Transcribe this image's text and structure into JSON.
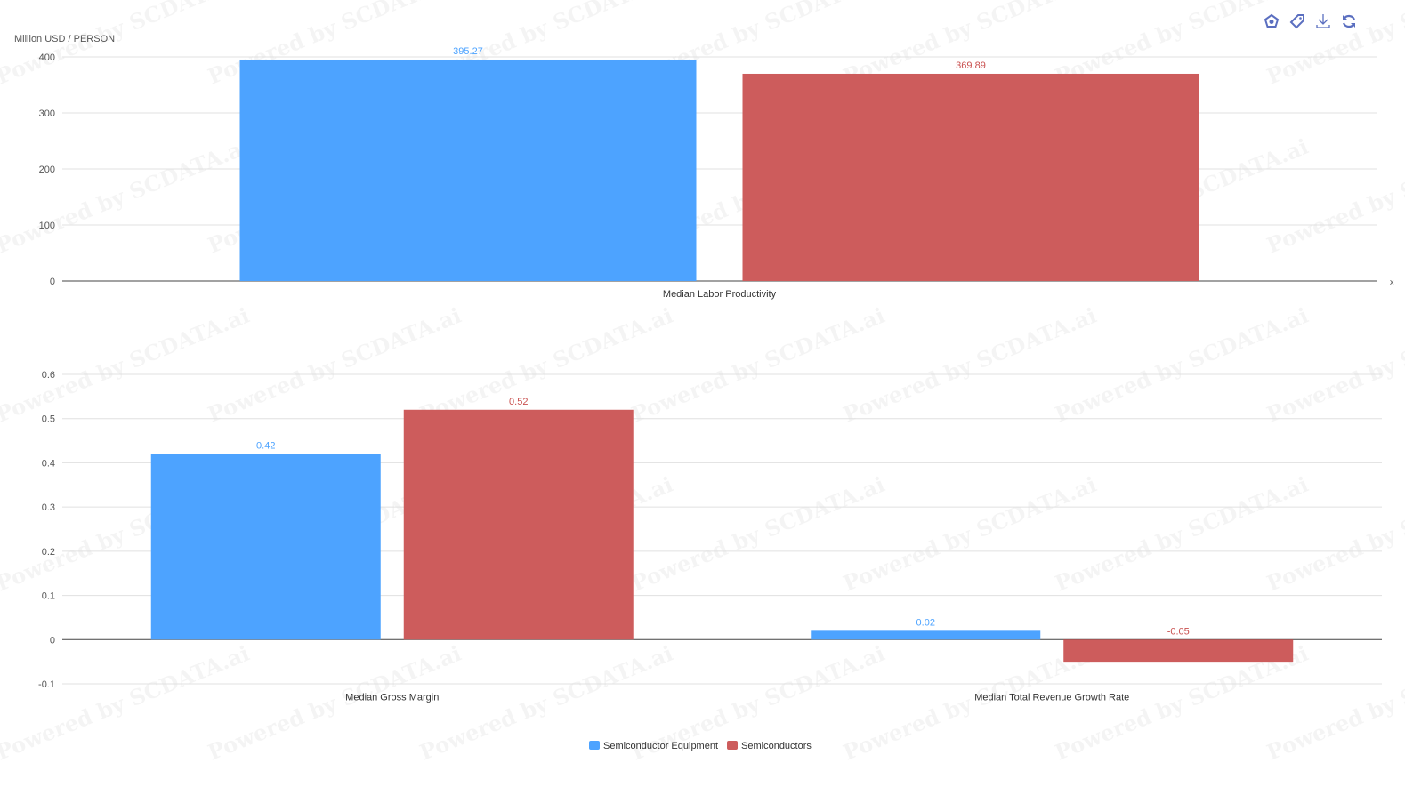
{
  "watermark": "Powered by SCDATA.ai",
  "toolbar": {
    "icons": [
      "radar-icon",
      "tag-icon",
      "download-icon",
      "refresh-icon"
    ]
  },
  "colors": {
    "series1": "#4da3ff",
    "series2": "#cd5c5c",
    "label1": "#4da3ff",
    "label2": "#c9504f"
  },
  "chart_data": [
    {
      "type": "bar",
      "title": "",
      "ylabel": "Million USD / PERSON",
      "xlabel": "x",
      "ylim": [
        0,
        400
      ],
      "yticks": [
        "0",
        "100",
        "200",
        "300",
        "400"
      ],
      "categories": [
        "Median Labor Productivity"
      ],
      "series": [
        {
          "name": "Semiconductor Equipment",
          "values": [
            395.27
          ],
          "labels": [
            "395.27"
          ]
        },
        {
          "name": "Semiconductors",
          "values": [
            369.89
          ],
          "labels": [
            "369.89"
          ]
        }
      ],
      "grid": true
    },
    {
      "type": "bar",
      "title": "",
      "ylabel": "",
      "ylim": [
        -0.1,
        0.6
      ],
      "yticks": [
        "-0.1",
        "0",
        "0.1",
        "0.2",
        "0.3",
        "0.4",
        "0.5",
        "0.6"
      ],
      "categories": [
        "Median Gross Margin",
        "Median Total Revenue Growth Rate"
      ],
      "series": [
        {
          "name": "Semiconductor Equipment",
          "values": [
            0.42,
            0.02
          ],
          "labels": [
            "0.42",
            "0.02"
          ]
        },
        {
          "name": "Semiconductors",
          "values": [
            0.52,
            -0.05
          ],
          "labels": [
            "0.52",
            "-0.05"
          ]
        }
      ],
      "grid": true,
      "legend": {
        "position": "bottom",
        "entries": [
          "Semiconductor Equipment",
          "Semiconductors"
        ]
      }
    }
  ]
}
